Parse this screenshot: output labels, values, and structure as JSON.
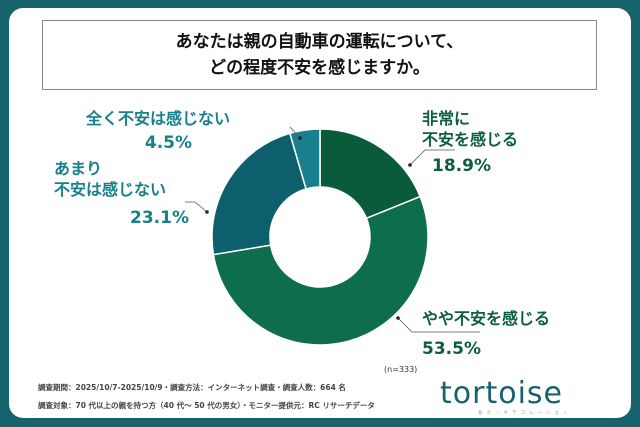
{
  "chart_data": {
    "type": "pie",
    "donut": true,
    "title_lines": [
      "あなたは親の自動車の運転について、",
      "どの程度不安を感じますか。"
    ],
    "slices": [
      {
        "label_lines": [
          "非常に",
          "不安を感じる"
        ],
        "value": 18.9,
        "value_text": "18.9%",
        "color": "#0a5a3c"
      },
      {
        "label_lines": [
          "やや不安を感じる"
        ],
        "value": 53.5,
        "value_text": "53.5%",
        "color": "#0e6e4c"
      },
      {
        "label_lines": [
          "あまり",
          "不安は感じない"
        ],
        "value": 23.1,
        "value_text": "23.1%",
        "color": "#0e5f6e"
      },
      {
        "label_lines": [
          "全く不安は感じない"
        ],
        "value": 4.5,
        "value_text": "4.5%",
        "color": "#1a7f8c"
      }
    ],
    "sample_size": "(n=333)"
  },
  "footer": {
    "line1": "調査期間：2025/10/7-2025/10/9・調査方法：インターネット調査・調査人数：664 名",
    "line2": "調査対象：70 代以上の親を持つ方（40 代～ 50 代の男女）・モニター提供元：RC リサーチデータ"
  },
  "logo": {
    "text": "tortoise",
    "subtitle": "長カ・キデコレーション"
  },
  "colors": {
    "frame": "#17636d",
    "label_green": "#0d5e3e",
    "label_teal": "#17808c"
  }
}
